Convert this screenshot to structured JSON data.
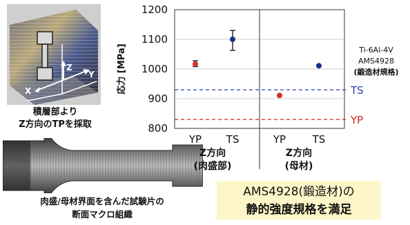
{
  "photo": {
    "axis_x": "X",
    "axis_y": "Y",
    "axis_z": "Z"
  },
  "tp_caption": {
    "line1": "積層部より",
    "line2": "Z方向のTPを採取"
  },
  "specimen_caption": {
    "line1": "肉盛/母材界面を含んだ試験片の",
    "line2": "断面マクロ組織"
  },
  "conclusion": {
    "line1": "AMS4928(鍛造材)の",
    "line2": "静的強度規格を満足"
  },
  "colors": {
    "yp_point": "#d93020",
    "ts_point": "#1b2f8c",
    "ts_line": "#2a3fb5",
    "yp_line": "#d92020",
    "highlight_box": "#fdf6c8"
  },
  "chart_data": {
    "type": "scatter",
    "ylabel": "応力 [MPa]",
    "ylim": [
      800,
      1200
    ],
    "yticks": [
      "800",
      "900",
      "1000",
      "1100",
      "1200"
    ],
    "grid": true,
    "groups": [
      {
        "label_line1": "Z方向",
        "label_line2": "(肉盛部)"
      },
      {
        "label_line1": "Z方向",
        "label_line2": "(母材)"
      }
    ],
    "categories": [
      "YP",
      "TS",
      "YP",
      "TS"
    ],
    "points": [
      {
        "category": "YP",
        "group": 0,
        "value": 1017,
        "err_low": 1008,
        "err_high": 1028,
        "color": "#d93020"
      },
      {
        "category": "TS",
        "group": 0,
        "value": 1100,
        "err_low": 1063,
        "err_high": 1130,
        "color": "#1b2f8c"
      },
      {
        "category": "YP",
        "group": 1,
        "value": 911,
        "err_low": 911,
        "err_high": 911,
        "color": "#d93020"
      },
      {
        "category": "TS",
        "group": 1,
        "value": 1011,
        "err_low": 1011,
        "err_high": 1011,
        "color": "#1b2f8c"
      }
    ],
    "reference_lines": [
      {
        "label": "TS",
        "value": 930,
        "color": "#2a3fb5"
      },
      {
        "label": "YP",
        "value": 830,
        "color": "#d92020"
      }
    ],
    "spec_label": {
      "line1": "Ti-6Al-4V",
      "line2": "AMS4928",
      "line3": "(鍛造材規格)"
    }
  }
}
